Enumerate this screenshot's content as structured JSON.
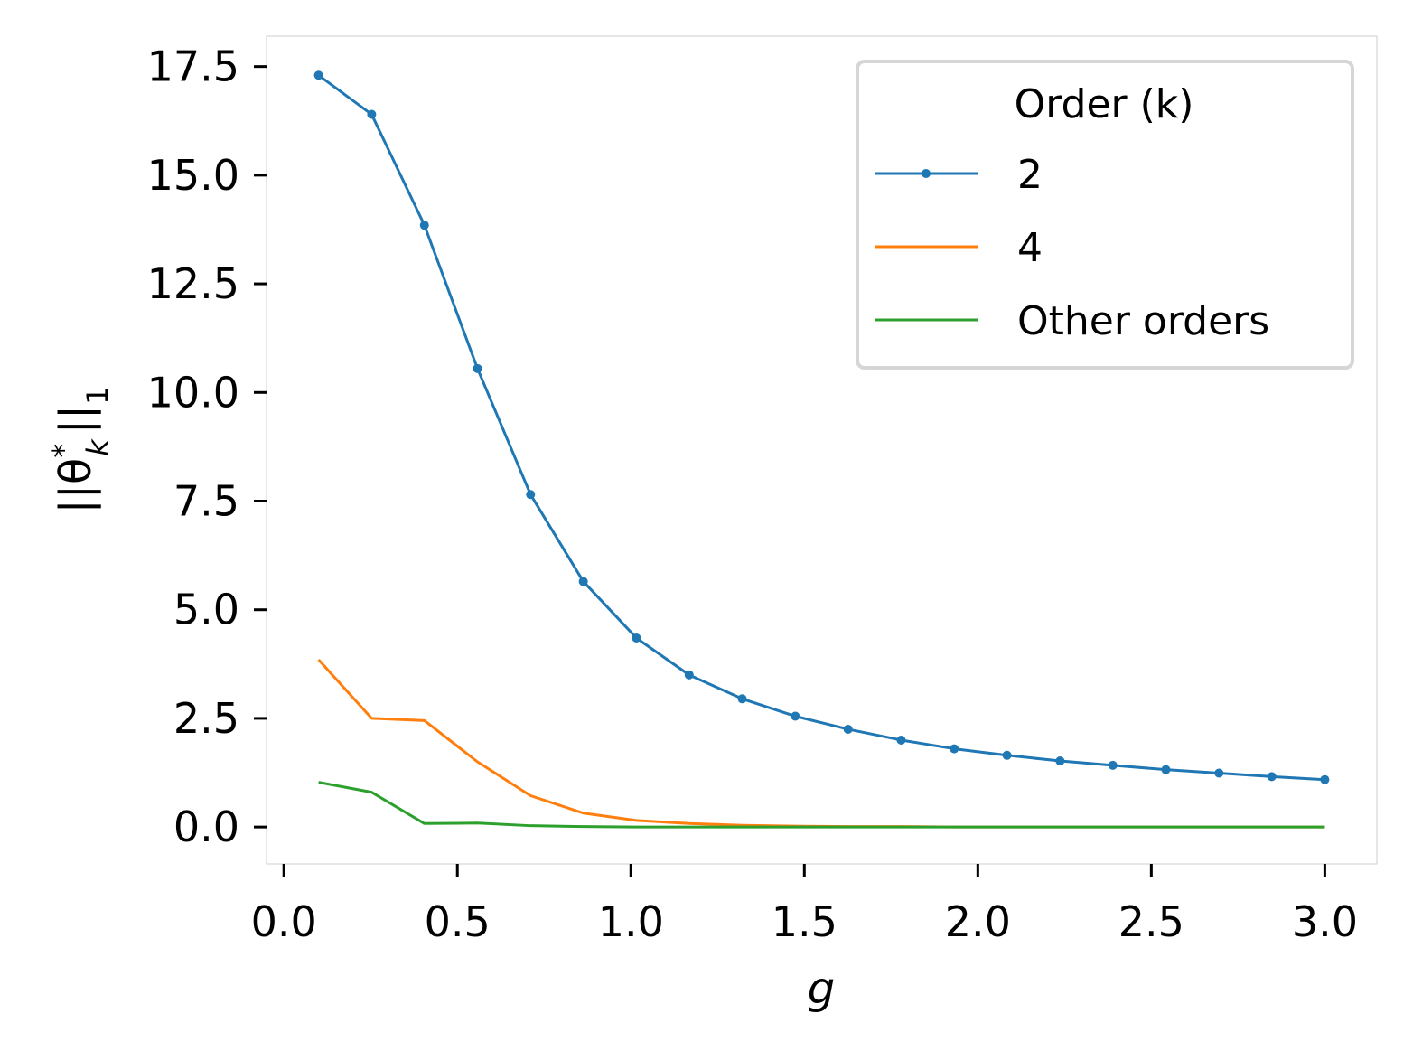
{
  "chart_data": {
    "type": "line",
    "title": "",
    "xlabel": "g",
    "ylabel_parts": {
      "base": "||θ",
      "sup": "*",
      "sub": "k",
      "tail": "||",
      "tail_sub": "1"
    },
    "xlim": [
      -0.05,
      3.15
    ],
    "ylim": [
      -0.85,
      18.2
    ],
    "x_ticks": [
      0.0,
      0.5,
      1.0,
      1.5,
      2.0,
      2.5,
      3.0
    ],
    "x_tick_labels": [
      "0.0",
      "0.5",
      "1.0",
      "1.5",
      "2.0",
      "2.5",
      "3.0"
    ],
    "y_ticks": [
      0.0,
      2.5,
      5.0,
      7.5,
      10.0,
      12.5,
      15.0,
      17.5
    ],
    "y_tick_labels": [
      "0.0",
      "2.5",
      "5.0",
      "7.5",
      "10.0",
      "12.5",
      "15.0",
      "17.5"
    ],
    "grid": false,
    "legend": {
      "title": "Order (k)",
      "placement": "top-right"
    },
    "x": [
      0.1,
      0.253,
      0.405,
      0.558,
      0.711,
      0.863,
      1.016,
      1.168,
      1.321,
      1.474,
      1.626,
      1.779,
      1.932,
      2.084,
      2.237,
      2.389,
      2.542,
      2.695,
      2.847,
      3.0
    ],
    "series": [
      {
        "name": "2",
        "color": "#1f77b4",
        "markers": true,
        "values": [
          17.3,
          16.4,
          13.85,
          10.55,
          7.65,
          5.65,
          4.35,
          3.5,
          2.95,
          2.55,
          2.25,
          2.0,
          1.8,
          1.65,
          1.52,
          1.42,
          1.32,
          1.24,
          1.16,
          1.09
        ]
      },
      {
        "name": "4",
        "color": "#ff7f0e",
        "markers": false,
        "values": [
          3.85,
          2.5,
          2.45,
          1.5,
          0.72,
          0.32,
          0.15,
          0.08,
          0.04,
          0.02,
          0.01,
          0.01,
          0.0,
          0.0,
          0.0,
          0.0,
          0.0,
          0.0,
          0.0,
          0.0
        ]
      },
      {
        "name": "Other orders",
        "color": "#2ca02c",
        "markers": false,
        "values": [
          1.03,
          0.8,
          0.08,
          0.09,
          0.03,
          0.01,
          0.0,
          0.0,
          0.0,
          0.0,
          0.0,
          0.0,
          0.0,
          0.0,
          0.0,
          0.0,
          0.0,
          0.0,
          0.0,
          0.0
        ]
      }
    ]
  }
}
